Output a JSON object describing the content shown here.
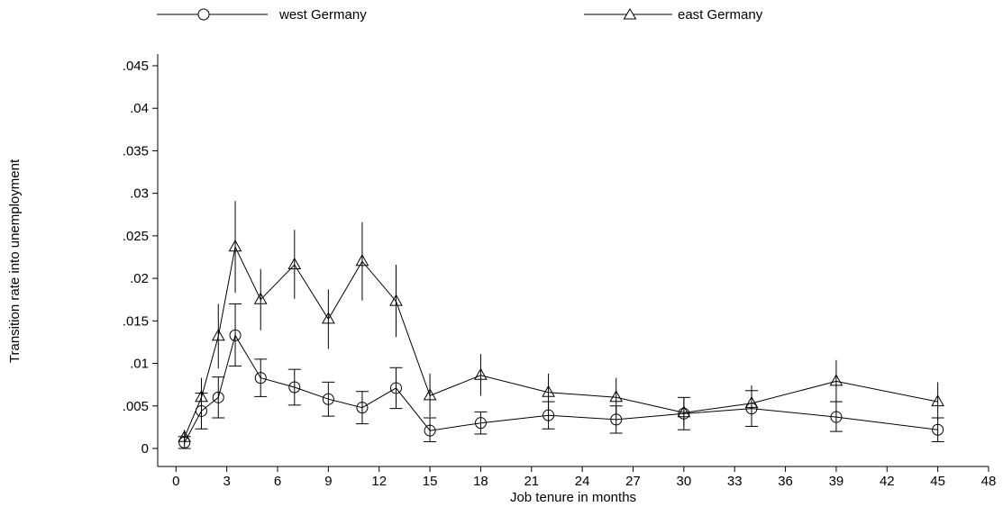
{
  "chart_data": {
    "type": "line",
    "xlabel": "Job tenure in months",
    "ylabel": "Transition rate into unemployment",
    "xlim": [
      -1.5,
      48
    ],
    "ylim": [
      -0.001,
      0.047
    ],
    "x_ticks": [
      0,
      3,
      6,
      9,
      12,
      15,
      18,
      21,
      24,
      27,
      30,
      33,
      36,
      39,
      42,
      45,
      48
    ],
    "y_ticks": [
      0,
      0.005,
      0.01,
      0.015,
      0.02,
      0.025,
      0.03,
      0.035,
      0.04,
      0.045
    ],
    "y_tick_labels": [
      "0",
      ".005",
      ".01",
      ".015",
      ".02",
      ".025",
      ".03",
      ".035",
      ".04",
      ".045"
    ],
    "legend_position": "top",
    "grid": false,
    "series": [
      {
        "name": "west Germany",
        "marker": "circle",
        "color": "#000000",
        "x": [
          0.5,
          1.5,
          2.5,
          3.5,
          5,
          7,
          9,
          11,
          13,
          15,
          18,
          22,
          26,
          30,
          34,
          39,
          45
        ],
        "y": [
          0.0007,
          0.0044,
          0.006,
          0.0133,
          0.0083,
          0.0072,
          0.0058,
          0.0048,
          0.0071,
          0.0021,
          0.003,
          0.0039,
          0.0034,
          0.0041,
          0.0047,
          0.0037,
          0.0022
        ],
        "ci_low": [
          0.0,
          0.0023,
          0.0036,
          0.0097,
          0.0061,
          0.0051,
          0.0038,
          0.0029,
          0.0047,
          0.0008,
          0.0017,
          0.0023,
          0.0018,
          0.0022,
          0.0026,
          0.002,
          0.0008
        ],
        "ci_high": [
          0.0014,
          0.0065,
          0.0084,
          0.017,
          0.0105,
          0.0093,
          0.0078,
          0.0067,
          0.0095,
          0.0036,
          0.0043,
          0.0055,
          0.005,
          0.006,
          0.0068,
          0.0055,
          0.0036
        ]
      },
      {
        "name": "east Germany",
        "marker": "triangle",
        "color": "#000000",
        "x": [
          0.5,
          1.5,
          2.5,
          3.5,
          5,
          7,
          9,
          11,
          13,
          15,
          18,
          22,
          26,
          30,
          34,
          39,
          45
        ],
        "y": [
          0.0013,
          0.006,
          0.0132,
          0.0237,
          0.0175,
          0.0216,
          0.0152,
          0.022,
          0.0173,
          0.0062,
          0.0086,
          0.0066,
          0.006,
          0.0042,
          0.0053,
          0.0079,
          0.0055
        ],
        "ci_low": [
          0.0004,
          0.0037,
          0.0094,
          0.0183,
          0.0139,
          0.0176,
          0.0117,
          0.0174,
          0.0131,
          0.0037,
          0.0062,
          0.0044,
          0.004,
          0.0027,
          0.0034,
          0.0055,
          0.0033
        ],
        "ci_high": [
          0.0022,
          0.0083,
          0.017,
          0.0291,
          0.0211,
          0.0257,
          0.0187,
          0.0266,
          0.0216,
          0.0088,
          0.0111,
          0.0088,
          0.0083,
          0.0059,
          0.0074,
          0.0104,
          0.0078
        ]
      }
    ]
  }
}
